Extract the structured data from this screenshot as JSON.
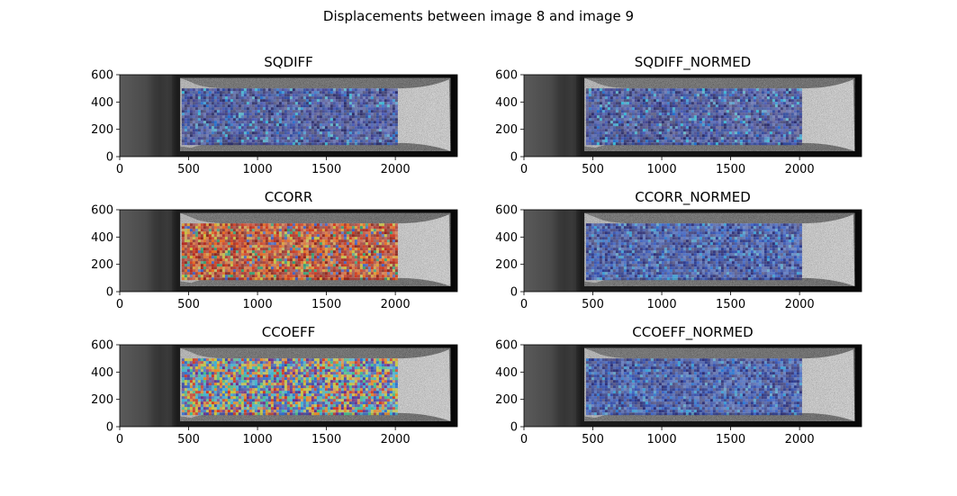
{
  "figure": {
    "title": "Displacements between image 8 and image 9"
  },
  "chart_data": [
    {
      "type": "heatmap",
      "title": "SQDIFF",
      "xlabel": "",
      "ylabel": "",
      "xlim": [
        0,
        2450
      ],
      "ylim": [
        0,
        600
      ],
      "xticks": [
        0,
        500,
        1000,
        1500,
        2000
      ],
      "yticks": [
        0,
        200,
        400,
        600
      ],
      "overlay_region": {
        "x": [
          450,
          2000
        ],
        "y": [
          100,
          500
        ]
      },
      "overlay_palette": [
        "#2a2d6b",
        "#3b3f91",
        "#4659b8",
        "#2f4aa0",
        "#1f6fd0",
        "#35b8d8",
        "#3c9dd9"
      ],
      "overlay_dominant": "low"
    },
    {
      "type": "heatmap",
      "title": "SQDIFF_NORMED",
      "xlabel": "",
      "ylabel": "",
      "xlim": [
        0,
        2450
      ],
      "ylim": [
        0,
        600
      ],
      "xticks": [
        0,
        500,
        1000,
        1500,
        2000
      ],
      "yticks": [
        0,
        200,
        400,
        600
      ],
      "overlay_region": {
        "x": [
          450,
          2000
        ],
        "y": [
          100,
          500
        ]
      },
      "overlay_palette": [
        "#2a2d6b",
        "#3b3f91",
        "#4659b8",
        "#2f4aa0",
        "#1f6fd0",
        "#35b8d8",
        "#3c9dd9"
      ],
      "overlay_dominant": "low"
    },
    {
      "type": "heatmap",
      "title": "CCORR",
      "xlabel": "",
      "ylabel": "",
      "xlim": [
        0,
        2450
      ],
      "ylim": [
        0,
        600
      ],
      "xticks": [
        0,
        500,
        1000,
        1500,
        2000
      ],
      "yticks": [
        0,
        200,
        400,
        600
      ],
      "overlay_region": {
        "x": [
          450,
          2000
        ],
        "y": [
          100,
          500
        ]
      },
      "overlay_palette": [
        "#b22a1e",
        "#d23a1c",
        "#8e2418",
        "#e86a1f",
        "#c9c23a",
        "#2f9e6e",
        "#3b5cc4",
        "#e0a030"
      ],
      "overlay_dominant": "high"
    },
    {
      "type": "heatmap",
      "title": "CCORR_NORMED",
      "xlabel": "",
      "ylabel": "",
      "xlim": [
        0,
        2450
      ],
      "ylim": [
        0,
        600
      ],
      "xticks": [
        0,
        500,
        1000,
        1500,
        2000
      ],
      "yticks": [
        0,
        200,
        400,
        600
      ],
      "overlay_region": {
        "x": [
          450,
          2000
        ],
        "y": [
          100,
          500
        ]
      },
      "overlay_palette": [
        "#2a3a8f",
        "#3550b0",
        "#2c2f78",
        "#4066c8",
        "#2a78d4",
        "#3ba0d8"
      ],
      "overlay_dominant": "low"
    },
    {
      "type": "heatmap",
      "title": "CCOEFF",
      "xlabel": "",
      "ylabel": "",
      "xlim": [
        0,
        2450
      ],
      "ylim": [
        0,
        600
      ],
      "xticks": [
        0,
        500,
        1000,
        1500,
        2000
      ],
      "yticks": [
        0,
        200,
        400,
        600
      ],
      "overlay_region": {
        "x": [
          450,
          2000
        ],
        "y": [
          100,
          500
        ]
      },
      "overlay_palette": [
        "#2c6fd0",
        "#36b3d6",
        "#3fc08a",
        "#c8c83a",
        "#e88a22",
        "#d3361e",
        "#3a48a8",
        "#6a2a8a"
      ],
      "overlay_dominant": "mixed"
    },
    {
      "type": "heatmap",
      "title": "CCOEFF_NORMED",
      "xlabel": "",
      "ylabel": "",
      "xlim": [
        0,
        2450
      ],
      "ylim": [
        0,
        600
      ],
      "xticks": [
        0,
        500,
        1000,
        1500,
        2000
      ],
      "yticks": [
        0,
        200,
        400,
        600
      ],
      "overlay_region": {
        "x": [
          450,
          2000
        ],
        "y": [
          100,
          500
        ]
      },
      "overlay_palette": [
        "#2a3a8f",
        "#3550b0",
        "#2c2f78",
        "#4066c8",
        "#2a78d4",
        "#3ba0d8"
      ],
      "overlay_dominant": "low"
    }
  ]
}
